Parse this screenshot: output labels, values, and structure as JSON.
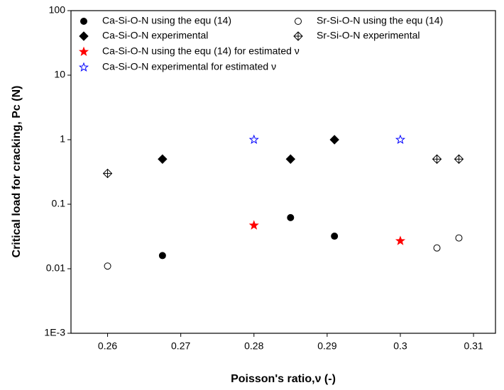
{
  "chart_data": {
    "type": "scatter",
    "x_label": "Poisson's ratio,ν (-)",
    "y_label": "Critical load for cracking, Pc (N)",
    "xlim": [
      0.255,
      0.313
    ],
    "xticks": [
      0.26,
      0.27,
      0.28,
      0.29,
      0.3,
      0.31
    ],
    "ylim": [
      0.001,
      100
    ],
    "yticks": [
      {
        "value": 0.001,
        "label": "1E-3"
      },
      0.01,
      0.1,
      1,
      10,
      100
    ],
    "y_scale": "log",
    "series": [
      {
        "name": "Ca-Si-O-N using the equ (14)",
        "color": "#000000",
        "marker": "circle",
        "x": [
          0.2675,
          0.285,
          0.291
        ],
        "values": [
          0.016,
          0.062,
          0.032
        ]
      },
      {
        "name": "Sr-Si-O-N using the equ (14)",
        "color": "#000000",
        "marker": "circle-open",
        "x": [
          0.26,
          0.305,
          0.308
        ],
        "values": [
          0.011,
          0.021,
          0.03
        ]
      },
      {
        "name": "Ca-Si-O-N experimental",
        "color": "#000000",
        "marker": "diamond",
        "x": [
          0.2675,
          0.285,
          0.291
        ],
        "values": [
          0.5,
          0.5,
          1
        ]
      },
      {
        "name": "Sr-Si-O-N experimental",
        "color": "#000000",
        "marker": "diamond-cross",
        "x": [
          0.26,
          0.305,
          0.308
        ],
        "values": [
          0.3,
          0.5,
          0.5
        ]
      },
      {
        "name": "Ca-Si-O-N using the equ (14) for estimated ν",
        "color": "#ff0000",
        "marker": "star",
        "x": [
          0.28,
          0.3
        ],
        "values": [
          0.047,
          0.027
        ]
      },
      {
        "name": "Ca-Si-O-N experimental for estimated ν",
        "color": "#0000ff",
        "marker": "star-open",
        "x": [
          0.28,
          0.3
        ],
        "values": [
          1,
          1
        ]
      }
    ]
  }
}
